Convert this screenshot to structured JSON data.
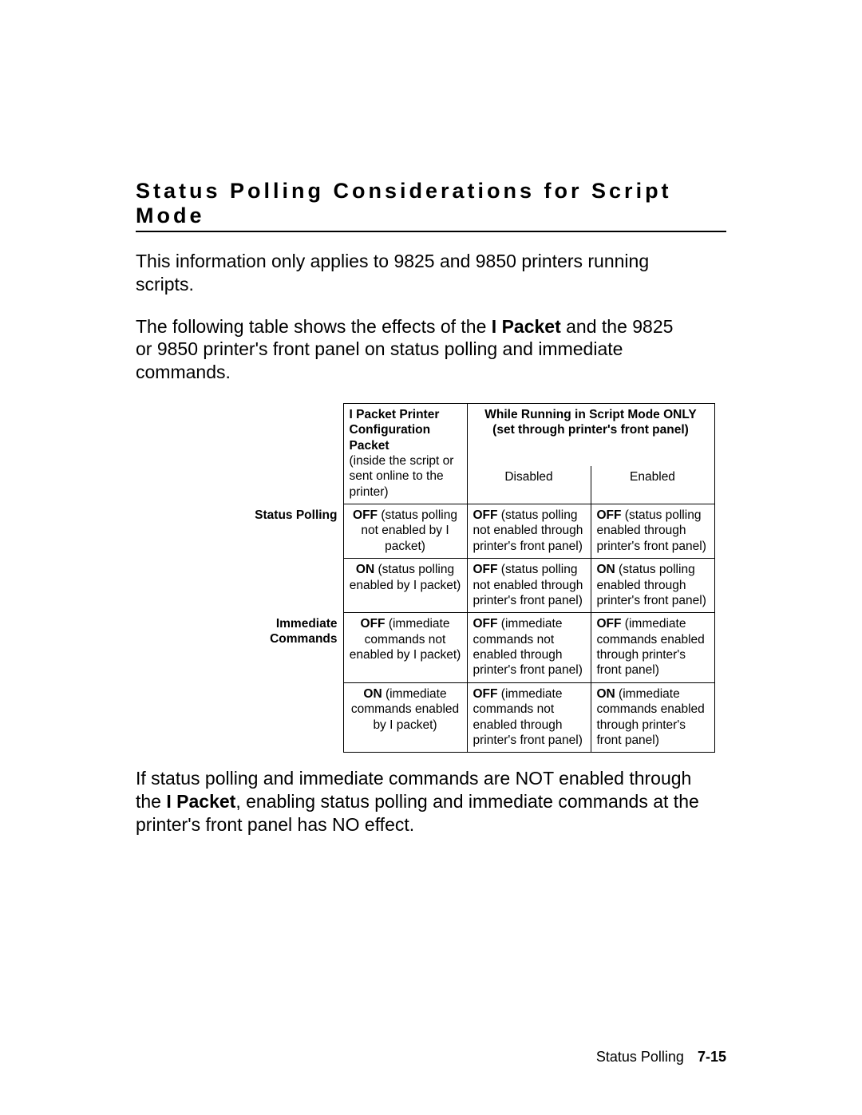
{
  "title": "Status Polling Considerations for Script Mode",
  "intro1": "This information only applies to 9825 and 9850 printers running scripts.",
  "intro2_pre": "The following table shows the effects of the ",
  "intro2_bold": "I Packet",
  "intro2_post": " and the 9825 or 9850 printer's front panel on status polling and immediate commands.",
  "headers": {
    "config_bold": "I Packet  Printer Configuration Packet",
    "config_plain": "(inside the script or sent online to the printer)",
    "script_line1": "While Running in Script Mode ONLY",
    "script_line2": "(set through printer's front panel)",
    "disabled": "Disabled",
    "enabled": "Enabled"
  },
  "rows": {
    "r1_label": "Status Polling",
    "r1c1_b": "OFF",
    "r1c1_t": " (status polling not enabled by I packet)",
    "r1c2_b": "OFF",
    "r1c2_t": " (status polling not enabled through printer's front panel)",
    "r1c3_b": "OFF",
    "r1c3_t": " (status polling enabled through printer's front panel)",
    "r2c1_b": "ON",
    "r2c1_t": " (status polling enabled by I packet)",
    "r2c2_b": "OFF",
    "r2c2_t": " (status polling not enabled through printer's front panel)",
    "r2c3_b": "ON",
    "r2c3_t": " (status polling enabled through printer's front panel)",
    "r3_label": "Immediate Commands",
    "r3c1_b": "OFF",
    "r3c1_t": " (immediate commands not enabled by I packet)",
    "r3c2_b": "OFF",
    "r3c2_t": " (immediate commands not enabled through printer's front panel)",
    "r3c3_b": "OFF",
    "r3c3_t": " (immediate commands enabled through printer's front panel)",
    "r4c1_b": "ON",
    "r4c1_t": " (immediate commands enabled by I packet)",
    "r4c2_b": "OFF",
    "r4c2_t": " (immediate commands not enabled through printer's front panel)",
    "r4c3_b": "ON",
    "r4c3_t": " (immediate commands enabled through printer's front panel)"
  },
  "after_pre": "If status polling and immediate commands are NOT enabled through the ",
  "after_bold": "I Packet",
  "after_post": ", enabling status polling and immediate commands at the printer's front panel has NO effect.",
  "footer_label": "Status Polling",
  "footer_page": "7-15"
}
